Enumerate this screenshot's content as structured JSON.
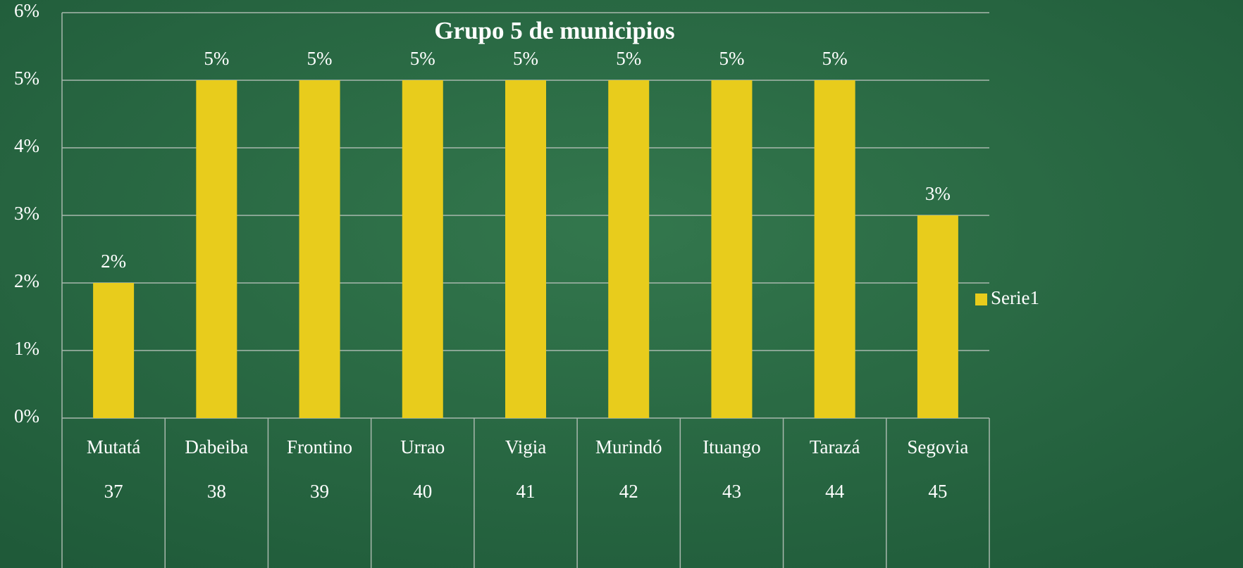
{
  "chart_data": {
    "type": "bar",
    "title": "Grupo 5 de municipios",
    "categories": [
      "Mutatá",
      "Dabeiba",
      "Frontino",
      "Urrao",
      "Vigia",
      "Murindó",
      "Ituango",
      "Tarazá",
      "Segovia"
    ],
    "category_codes": [
      37,
      38,
      39,
      40,
      41,
      42,
      43,
      44,
      45
    ],
    "series": [
      {
        "name": "Serie1",
        "color": "#e8cc1c",
        "values": [
          2,
          5,
          5,
          5,
          5,
          5,
          5,
          5,
          3
        ],
        "value_labels": [
          "2%",
          "5%",
          "5%",
          "5%",
          "5%",
          "5%",
          "5%",
          "5%",
          "3%"
        ]
      }
    ],
    "ylim": [
      0,
      6
    ],
    "yticks": [
      {
        "value": 0,
        "label": "0%"
      },
      {
        "value": 1,
        "label": "1%"
      },
      {
        "value": 2,
        "label": "2%"
      },
      {
        "value": 3,
        "label": "3%"
      },
      {
        "value": 4,
        "label": "4%"
      },
      {
        "value": 5,
        "label": "5%"
      },
      {
        "value": 6,
        "label": "6%"
      }
    ],
    "grid": true,
    "legend": "right"
  }
}
